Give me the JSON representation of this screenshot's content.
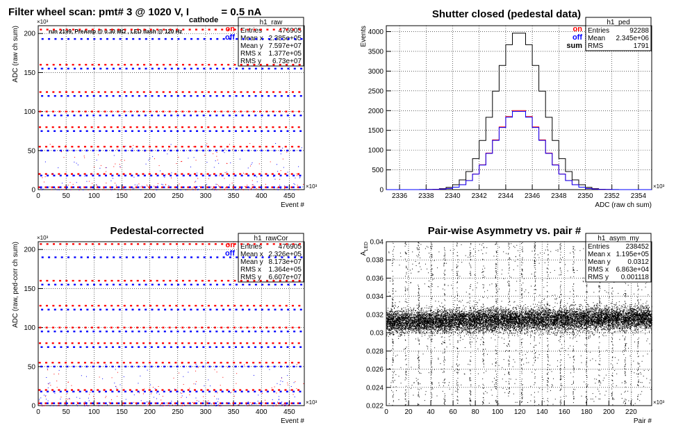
{
  "header": {
    "title_main": "Filter wheel scan: pmt#   3 @  1020 V, I",
    "title_sub": "cathode",
    "title_tail": " = 0.5 nA"
  },
  "annotation": "run 2199, PreAmp @ 0.30 MΩ , LED flash @  120 Hz",
  "legend_colors": {
    "on": "#ff0000",
    "off": "#0000ff",
    "sum": "#000000"
  },
  "chart_data": [
    {
      "id": "raw",
      "type": "scatter",
      "title": "",
      "xlabel": "Event #",
      "ylabel": "ADC (raw ch sum)",
      "x_exponent": "×10³",
      "y_exponent": "×10³",
      "xlim": [
        0,
        476.9
      ],
      "ylim": [
        0,
        210
      ],
      "xticks": [
        0,
        50,
        100,
        150,
        200,
        250,
        300,
        350,
        400,
        450
      ],
      "yticks": [
        0,
        50,
        100,
        150,
        200
      ],
      "legend": [
        "on",
        "off"
      ],
      "stats": {
        "name": "h1_raw",
        "rows": [
          [
            "Entries",
            "476905"
          ],
          [
            "Mean x",
            "2.385e+05"
          ],
          [
            "Mean y",
            "7.597e+07"
          ],
          [
            "RMS x",
            "1.377e+05"
          ],
          [
            "RMS y",
            "6.73e+07"
          ]
        ]
      },
      "series": [
        {
          "name": "on",
          "levels": [
            3,
            20,
            55,
            80,
            100,
            125,
            160,
            205
          ]
        },
        {
          "name": "off",
          "levels": [
            3,
            18,
            50,
            75,
            95,
            120,
            155,
            193
          ]
        }
      ]
    },
    {
      "id": "ped",
      "type": "line",
      "title": "Shutter closed (pedestal data)",
      "xlabel": "ADC (raw ch sum)",
      "ylabel": "Events",
      "x_exponent": "×10³",
      "xlim": [
        2335,
        2355
      ],
      "ylim": [
        0,
        4150
      ],
      "xticks": [
        2336,
        2338,
        2340,
        2342,
        2344,
        2346,
        2348,
        2350,
        2352,
        2354
      ],
      "yticks": [
        0,
        500,
        1000,
        1500,
        2000,
        2500,
        3000,
        3500,
        4000
      ],
      "legend": [
        "on",
        "off",
        "sum"
      ],
      "stats": {
        "name": "h1_ped",
        "rows": [
          [
            "Entries",
            "92288"
          ],
          [
            "Mean",
            "2.345e+06"
          ],
          [
            "RMS",
            "1791"
          ]
        ]
      },
      "series": [
        {
          "name": "sum",
          "mean": 2345,
          "sigma": 1.8,
          "peak": 4000
        },
        {
          "name": "on",
          "mean": 2345,
          "sigma": 1.8,
          "peak": 2000
        },
        {
          "name": "off",
          "mean": 2345,
          "sigma": 1.8,
          "peak": 2000
        }
      ]
    },
    {
      "id": "rawCor",
      "type": "scatter",
      "title": "Pedestal-corrected",
      "xlabel": "Event #",
      "ylabel": "ADC (raw, ped-corr ch sum)",
      "x_exponent": "×10³",
      "y_exponent": "×10³",
      "xlim": [
        0,
        476.9
      ],
      "ylim": [
        0,
        210
      ],
      "xticks": [
        0,
        50,
        100,
        150,
        200,
        250,
        300,
        350,
        400,
        450
      ],
      "yticks": [
        0,
        50,
        100,
        150,
        200
      ],
      "legend": [
        "on",
        "off"
      ],
      "stats": {
        "name": "h1_rawCor",
        "rows": [
          [
            "Entries",
            "476905"
          ],
          [
            "Mean x",
            "2.326e+05"
          ],
          [
            "Mean y",
            "8.173e+07"
          ],
          [
            "RMS x",
            "1.364e+05"
          ],
          [
            "RMS y",
            "6.607e+07"
          ]
        ]
      },
      "series": [
        {
          "name": "on",
          "levels": [
            3,
            20,
            55,
            80,
            100,
            128,
            160,
            207
          ]
        },
        {
          "name": "off",
          "levels": [
            3,
            18,
            50,
            75,
            95,
            123,
            155,
            190
          ]
        }
      ]
    },
    {
      "id": "asym",
      "type": "scatter",
      "title": "Pair-wise Asymmetry vs. pair #",
      "xlabel": "Pair #",
      "ylabel": "A",
      "ylabel_sub": "LED",
      "x_exponent": "×10³",
      "xlim": [
        0,
        238.5
      ],
      "ylim": [
        0.022,
        0.04
      ],
      "xticks": [
        0,
        20,
        40,
        60,
        80,
        100,
        120,
        140,
        160,
        180,
        200,
        220
      ],
      "yticks": [
        0.022,
        0.024,
        0.026,
        0.028,
        0.03,
        0.032,
        0.034,
        0.036,
        0.038,
        0.04
      ],
      "stats": {
        "name": "h1_asym_my",
        "rows": [
          [
            "Entries",
            "238452"
          ],
          [
            "Mean x",
            "1.195e+05"
          ],
          [
            "Mean y",
            "0.0312"
          ],
          [
            "RMS x",
            "6.863e+04"
          ],
          [
            "RMS y",
            "0.001118"
          ]
        ]
      },
      "series": [
        {
          "name": "asymmetry",
          "center": 0.0312,
          "rms": 0.001118
        }
      ]
    }
  ]
}
